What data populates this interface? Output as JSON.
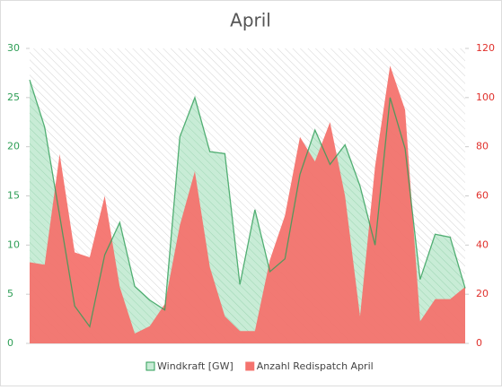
{
  "chart_data": {
    "type": "area",
    "title": "April",
    "series": [
      {
        "name": "Windkraft [GW]",
        "color": "#2e9e56",
        "axis": "y",
        "values": [
          26.8,
          22,
          13,
          3.8,
          1.7,
          9,
          12.3,
          5.8,
          4.4,
          3.4,
          21,
          25,
          19.5,
          19.3,
          6,
          13.6,
          7.3,
          8.6,
          17.2,
          21.7,
          18.2,
          20.2,
          16,
          10,
          25,
          19.8,
          6.5,
          11.1,
          10.8,
          5.6
        ]
      },
      {
        "name": "Anzahl Redispatch April",
        "color": "#f4736e",
        "axis": "y2",
        "values": [
          33,
          32,
          77,
          37,
          35,
          60,
          23,
          4,
          7,
          16,
          48,
          70,
          31,
          11,
          5,
          5,
          34,
          52,
          84,
          74,
          90,
          60,
          11,
          72,
          113,
          95,
          9,
          18,
          18,
          23
        ]
      }
    ],
    "ylim": [
      0,
      30
    ],
    "yticks": [
      0,
      5,
      10,
      15,
      20,
      25,
      30
    ],
    "y2lim": [
      0,
      120
    ],
    "y2ticks": [
      0,
      20,
      40,
      60,
      80,
      100,
      120
    ],
    "legend": "bottom"
  }
}
